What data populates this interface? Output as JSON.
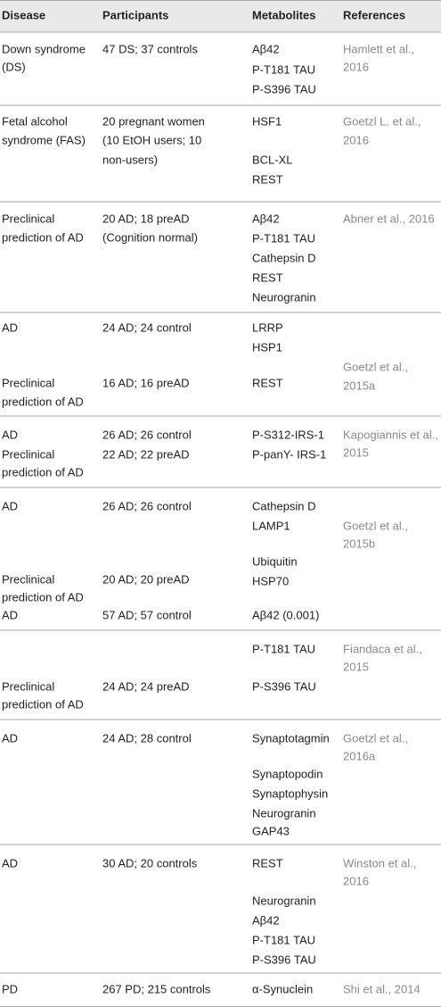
{
  "table": {
    "header": [
      "Disease",
      "Participants",
      "Metabolites",
      "References"
    ],
    "rows": [
      [
        [
          "Down syndrome",
          "(DS)"
        ],
        [
          "47 DS; 37 controls"
        ],
        [
          "Aβ42",
          "P-T181 TAU",
          "P-S396 TAU"
        ],
        [
          "Hamlett et al.,",
          "2016"
        ]
      ],
      [
        [
          "Fetal alcohol",
          "syndrome (FAS)"
        ],
        [
          "20 pregnant women",
          "(10 EtOH users; 10",
          "non-users)"
        ],
        [
          "HSF1",
          "BCL-XL",
          "REST"
        ],
        [
          "Goetzl L. et al.,",
          "2016"
        ]
      ],
      [
        [
          "Preclinical",
          "prediction of AD"
        ],
        [
          "20 AD; 18 preAD",
          "(Cognition normal)"
        ],
        [
          "Aβ42",
          "P-T181 TAU",
          "Cathepsin D",
          "REST",
          "Neurogranin"
        ],
        [
          "Abner et al., 2016"
        ]
      ],
      [
        [
          "AD",
          "Preclinical",
          "prediction of AD"
        ],
        [
          "24 AD; 24 control",
          "16 AD; 16 preAD"
        ],
        [
          "LRRP",
          "HSP1",
          "REST"
        ],
        [
          "Goetzl et al.,",
          "2015a"
        ]
      ],
      [
        [
          "AD",
          "Preclinical",
          "prediction of AD"
        ],
        [
          "26 AD; 26 control",
          "22 AD; 22 preAD"
        ],
        [
          "P-S312-IRS-1",
          "P-panY- IRS-1"
        ],
        [
          "Kapogiannis et al.,",
          "2015"
        ]
      ],
      [
        [
          "AD",
          "Preclinical",
          "prediction of AD",
          "AD"
        ],
        [
          "26 AD; 26 control",
          "20 AD; 20 preAD",
          "57 AD; 57 control"
        ],
        [
          "Cathepsin D",
          "LAMP1",
          "Ubiquitin",
          "HSP70",
          "Aβ42 (0.001)"
        ],
        [
          "Goetzl et al.,",
          "2015b"
        ]
      ],
      [
        [
          "Preclinical",
          "prediction of AD"
        ],
        [
          "24 AD; 24 preAD"
        ],
        [
          "P-T181 TAU",
          "P-S396 TAU"
        ],
        [
          "Fiandaca et al.,",
          "2015"
        ]
      ],
      [
        [
          "AD"
        ],
        [
          "24 AD; 28 control"
        ],
        [
          "Synaptotagmin",
          "Synaptopodin",
          "Synaptophysin",
          "Neurogranin",
          "GAP43"
        ],
        [
          "Goetzl et al.,",
          "2016a"
        ]
      ],
      [
        [
          "AD"
        ],
        [
          "30 AD; 20 controls"
        ],
        [
          "REST",
          "Neurogranin",
          "Aβ42",
          "P-T181 TAU",
          "P-S396 TAU"
        ],
        [
          "Winston et al.,",
          "2016"
        ]
      ],
      [
        [
          "PD"
        ],
        [
          "267 PD; 215 controls"
        ],
        [
          "α-Synuclein"
        ],
        [
          "Shi et al., 2014"
        ]
      ]
    ]
  }
}
